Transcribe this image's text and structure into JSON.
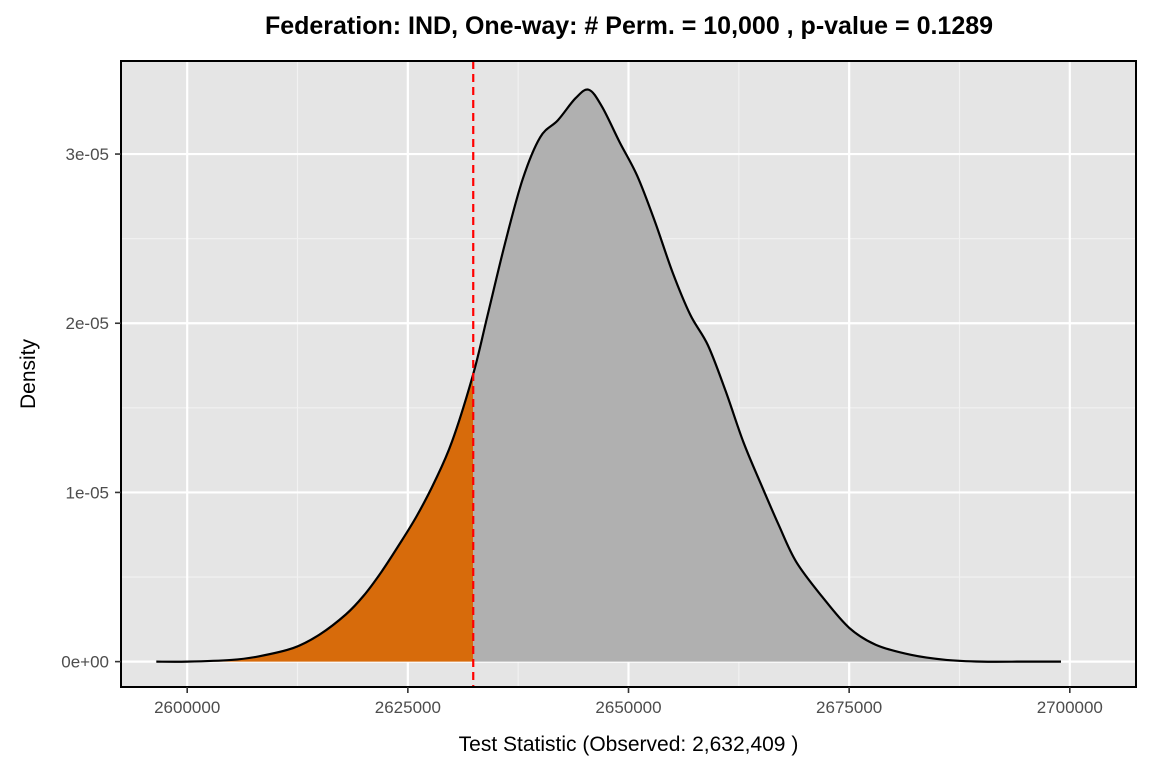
{
  "chart_data": {
    "type": "area",
    "title": "Federation: IND, One-way: # Perm. = 10,000 , p-value = 0.1289",
    "xlabel": "Test Statistic (Observed: 2,632,409 )",
    "ylabel": "Density",
    "xlim": [
      2592500,
      2707500
    ],
    "ylim": [
      -1.5e-06,
      3.55e-05
    ],
    "x_ticks": [
      2600000,
      2625000,
      2650000,
      2675000,
      2700000
    ],
    "x_tick_labels": [
      "2600000",
      "2625000",
      "2650000",
      "2675000",
      "2700000"
    ],
    "y_ticks": [
      0,
      1e-05,
      2e-05,
      3e-05
    ],
    "y_tick_labels": [
      "0e+00",
      "1e-05",
      "2e-05",
      "3e-05"
    ],
    "grid": true,
    "observed_value": 2632409,
    "x": [
      2596500,
      2600000,
      2605000,
      2608000,
      2612000,
      2615000,
      2618000,
      2620000,
      2622000,
      2624000,
      2626000,
      2628000,
      2630000,
      2632409,
      2634000,
      2636000,
      2638000,
      2640000,
      2642000,
      2644000,
      2645500,
      2647000,
      2649000,
      2651000,
      2653000,
      2655000,
      2657000,
      2659000,
      2661000,
      2663000,
      2665000,
      2667000,
      2669000,
      2672000,
      2675000,
      2678000,
      2682000,
      2686000,
      2690000,
      2695000,
      2699000
    ],
    "y": [
      0.0,
      0.0,
      1e-07,
      3e-07,
      8e-07,
      1.6e-06,
      2.8e-06,
      3.9e-06,
      5.3e-06,
      6.9e-06,
      8.6e-06,
      1.06e-05,
      1.3e-05,
      1.7e-05,
      2.04e-05,
      2.47e-05,
      2.85e-05,
      3.1e-05,
      3.2e-05,
      3.33e-05,
      3.38e-05,
      3.28e-05,
      3.07e-05,
      2.87e-05,
      2.6e-05,
      2.3e-05,
      2.05e-05,
      1.87e-05,
      1.6e-05,
      1.3e-05,
      1.05e-05,
      8.1e-06,
      5.9e-06,
      3.8e-06,
      2e-06,
      1e-06,
      4e-07,
      1e-07,
      0.0,
      0.0,
      0.0
    ],
    "fill_colors": {
      "tail": "#d76b0b",
      "body": "#b0b0b0",
      "panel": "#e5e5e5",
      "observed_line": "#ff0000"
    }
  }
}
